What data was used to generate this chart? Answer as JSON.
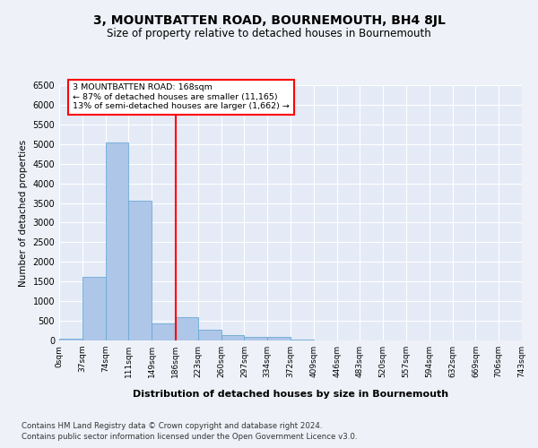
{
  "title": "3, MOUNTBATTEN ROAD, BOURNEMOUTH, BH4 8JL",
  "subtitle": "Size of property relative to detached houses in Bournemouth",
  "xlabel": "Distribution of detached houses by size in Bournemouth",
  "ylabel": "Number of detached properties",
  "footer1": "Contains HM Land Registry data © Crown copyright and database right 2024.",
  "footer2": "Contains public sector information licensed under the Open Government Licence v3.0.",
  "bin_labels": [
    "0sqm",
    "37sqm",
    "74sqm",
    "111sqm",
    "149sqm",
    "186sqm",
    "223sqm",
    "260sqm",
    "297sqm",
    "334sqm",
    "372sqm",
    "409sqm",
    "446sqm",
    "483sqm",
    "520sqm",
    "557sqm",
    "594sqm",
    "632sqm",
    "669sqm",
    "706sqm",
    "743sqm"
  ],
  "bar_values": [
    50,
    1620,
    5050,
    3560,
    430,
    600,
    280,
    130,
    100,
    80,
    20,
    10,
    5,
    0,
    0,
    0,
    0,
    0,
    0,
    0
  ],
  "bar_color": "#aec6e8",
  "bar_edge_color": "#6aaad4",
  "red_line_x": 4.55,
  "annotation_line1": "3 MOUNTBATTEN ROAD: 168sqm",
  "annotation_line2": "← 87% of detached houses are smaller (11,165)",
  "annotation_line3": "13% of semi-detached houses are larger (1,662) →",
  "ylim": [
    0,
    6500
  ],
  "yticks": [
    0,
    500,
    1000,
    1500,
    2000,
    2500,
    3000,
    3500,
    4000,
    4500,
    5000,
    5500,
    6000,
    6500
  ],
  "background_color": "#eef2f8",
  "plot_bg_color": "#e4eaf6"
}
